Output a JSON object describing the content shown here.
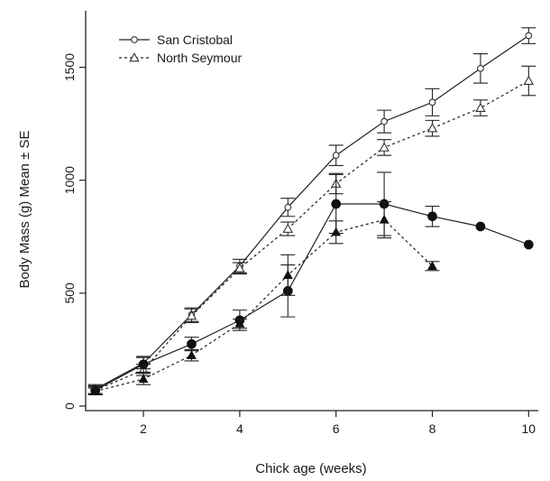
{
  "chart_data": {
    "type": "line",
    "xlabel": "Chick age (weeks)",
    "ylabel": "Body Mass (g) Mean ± SE",
    "xlim": [
      0.8,
      10.2
    ],
    "ylim": [
      -20,
      1750
    ],
    "xticks": [
      2,
      4,
      6,
      8,
      10
    ],
    "yticks": [
      0,
      500,
      1000,
      1500
    ],
    "grid": false,
    "legend_position": "top-left",
    "series": [
      {
        "name": "San Cristobal",
        "line_style": "solid",
        "marker": "open-circle",
        "points": [
          {
            "x": 1,
            "y": 75,
            "err": 20
          },
          {
            "x": 2,
            "y": 190,
            "err": 25
          },
          {
            "x": 3,
            "y": 405,
            "err": 30
          },
          {
            "x": 4,
            "y": 620,
            "err": 30
          },
          {
            "x": 5,
            "y": 880,
            "err": 40
          },
          {
            "x": 6,
            "y": 1110,
            "err": 45
          },
          {
            "x": 7,
            "y": 1260,
            "err": 50
          },
          {
            "x": 8,
            "y": 1345,
            "err": 60
          },
          {
            "x": 9,
            "y": 1495,
            "err": 65
          },
          {
            "x": 10,
            "y": 1640,
            "err": 35
          }
        ]
      },
      {
        "name": "North Seymour",
        "line_style": "dashed",
        "marker": "open-triangle",
        "points": [
          {
            "x": 1,
            "y": 70,
            "err": 20
          },
          {
            "x": 2,
            "y": 160,
            "err": 25
          },
          {
            "x": 3,
            "y": 400,
            "err": 30
          },
          {
            "x": 4,
            "y": 610,
            "err": 25
          },
          {
            "x": 5,
            "y": 785,
            "err": 30
          },
          {
            "x": 6,
            "y": 985,
            "err": 45
          },
          {
            "x": 7,
            "y": 1145,
            "err": 35
          },
          {
            "x": 8,
            "y": 1230,
            "err": 35
          },
          {
            "x": 9,
            "y": 1320,
            "err": 35
          },
          {
            "x": 10,
            "y": 1440,
            "err": 65
          }
        ]
      },
      {
        "line_style": "solid",
        "marker": "filled-circle",
        "points": [
          {
            "x": 1,
            "y": 70,
            "err": 15
          },
          {
            "x": 2,
            "y": 185,
            "err": 35
          },
          {
            "x": 3,
            "y": 275,
            "err": 30
          },
          {
            "x": 4,
            "y": 380,
            "err": 45
          },
          {
            "x": 5,
            "y": 510,
            "err": 115
          },
          {
            "x": 6,
            "y": 895,
            "err": 130
          },
          {
            "x": 7,
            "y": 895,
            "err": 140
          },
          {
            "x": 8,
            "y": 840,
            "err": 45
          },
          {
            "x": 9,
            "y": 795,
            "err": 0
          },
          {
            "x": 10,
            "y": 715,
            "err": 0
          }
        ]
      },
      {
        "line_style": "dashed",
        "marker": "filled-triangle",
        "points": [
          {
            "x": 1,
            "y": 65,
            "err": 15
          },
          {
            "x": 2,
            "y": 120,
            "err": 25
          },
          {
            "x": 3,
            "y": 225,
            "err": 25
          },
          {
            "x": 4,
            "y": 365,
            "err": 20
          },
          {
            "x": 5,
            "y": 580,
            "err": 90
          },
          {
            "x": 6,
            "y": 770,
            "err": 50
          },
          {
            "x": 7,
            "y": 825,
            "err": 80
          },
          {
            "x": 8,
            "y": 620,
            "err": 20
          }
        ]
      }
    ]
  }
}
